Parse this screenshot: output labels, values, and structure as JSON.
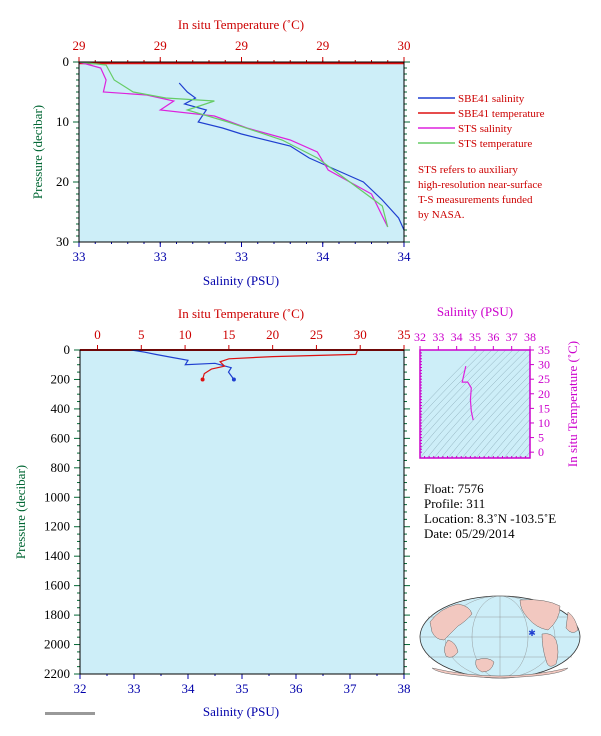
{
  "colors": {
    "bg": "#cdeef8",
    "blue": "#1f3fd0",
    "red": "#dd1111",
    "magenta": "#dd22dd",
    "green": "#66cc66",
    "axis_dark_green": "#006633",
    "axis_red": "#cc0000",
    "axis_blue": "#0000aa",
    "axis_magenta": "#cc00cc"
  },
  "chart_data": [
    {
      "id": "upper",
      "type": "line",
      "title": "",
      "top_axis_label": "In situ Temperature (˚C)",
      "top_tick_labels": [
        "29",
        "29",
        "29",
        "29",
        "30"
      ],
      "xlabel": "Salinity (PSU)",
      "x_tick_labels": [
        "33",
        "33",
        "33",
        "34",
        "34"
      ],
      "ylabel": "Pressure (decibar)",
      "y_ticks": [
        0,
        10,
        20,
        30
      ],
      "ylim": [
        0,
        30
      ],
      "xlim": [
        32.8,
        34.0
      ],
      "temp_lim": [
        28.8,
        30.0
      ],
      "legend": {
        "placement": "right",
        "entries": [
          {
            "label": "SBE41 salinity",
            "color": "#1f3fd0"
          },
          {
            "label": "SBE41 temperature",
            "color": "#dd1111"
          },
          {
            "label": "STS salinity",
            "color": "#dd22dd"
          },
          {
            "label": "STS temperature",
            "color": "#66cc66"
          }
        ]
      },
      "note_lines": [
        "STS refers to auxiliary",
        "high-resolution near-surface",
        "T-S measurements funded",
        "by NASA."
      ],
      "series": [
        {
          "name": "SBE41 salinity",
          "color": "#1f3fd0",
          "axis": "salinity",
          "x": [
            33.17,
            33.2,
            33.23,
            33.19,
            33.27,
            33.24,
            33.33,
            33.4,
            33.58,
            33.65,
            33.75,
            33.85,
            33.92,
            33.98,
            34.0
          ],
          "y": [
            3.5,
            5,
            6,
            7,
            8,
            10,
            11,
            12,
            14,
            16,
            18,
            20,
            23,
            26,
            28
          ]
        },
        {
          "name": "SBE41 temperature",
          "color": "#dd1111",
          "axis": "temperature",
          "x": [
            28.8,
            30.0
          ],
          "y": [
            0.2,
            0.2
          ]
        },
        {
          "name": "STS salinity",
          "color": "#dd22dd",
          "axis": "salinity",
          "x": [
            32.8,
            32.84,
            32.88,
            32.9,
            32.89,
            33.05,
            33.15,
            33.1,
            33.3,
            33.42,
            33.58,
            33.68,
            33.72,
            33.88,
            33.94
          ],
          "y": [
            0,
            0.5,
            1,
            3,
            5,
            5.5,
            6.5,
            8,
            9,
            11,
            13,
            15,
            18,
            22,
            27.5
          ]
        },
        {
          "name": "STS temperature",
          "color": "#66cc66",
          "axis": "salinity",
          "x": [
            32.8,
            32.9,
            32.93,
            33.0,
            33.12,
            33.3,
            33.2,
            33.35,
            33.55,
            33.68,
            33.8,
            33.92,
            33.94
          ],
          "y": [
            0,
            0.5,
            3,
            5,
            6,
            6.5,
            8,
            10,
            13,
            16,
            20,
            24,
            27.5
          ]
        }
      ]
    },
    {
      "id": "lower",
      "type": "line",
      "title": "",
      "top_axis_label": "In situ Temperature (˚C)",
      "top_ticks": [
        0,
        5,
        10,
        15,
        20,
        25,
        30,
        35
      ],
      "xlabel": "Salinity (PSU)",
      "x_ticks": [
        32,
        33,
        34,
        35,
        36,
        37,
        38
      ],
      "ylabel": "Pressure (decibar)",
      "y_ticks": [
        0,
        200,
        400,
        600,
        800,
        1000,
        1200,
        1400,
        1600,
        1800,
        2000,
        2200
      ],
      "ylim": [
        0,
        2200
      ],
      "xlim": [
        32,
        38
      ],
      "temp_lim": [
        -2,
        35
      ],
      "series": [
        {
          "name": "salinity",
          "color": "#1f3fd0",
          "axis": "salinity",
          "x": [
            32.95,
            33.2,
            33.4,
            33.7,
            34.0,
            33.95,
            34.5,
            34.8,
            34.75,
            34.85
          ],
          "y": [
            0,
            15,
            30,
            50,
            70,
            100,
            90,
            120,
            150,
            200
          ]
        },
        {
          "name": "temperature",
          "color": "#dd1111",
          "axis": "temperature",
          "x": [
            29.7,
            29.5,
            20,
            15,
            14,
            14.5,
            13,
            12.2,
            12.0
          ],
          "y": [
            0,
            30,
            45,
            60,
            80,
            110,
            130,
            160,
            200
          ]
        }
      ]
    },
    {
      "id": "ts",
      "type": "line",
      "title": "",
      "top_axis_label": "Salinity (PSU)",
      "top_ticks": [
        32,
        33,
        34,
        35,
        36,
        37,
        38
      ],
      "right_axis_label": "In situ Temperature (˚C)",
      "right_ticks": [
        0,
        5,
        10,
        15,
        20,
        25,
        30,
        35
      ],
      "xlim": [
        32,
        38
      ],
      "ylim": [
        -2,
        35
      ],
      "series": [
        {
          "name": "T-S",
          "color": "#dd22dd",
          "x": [
            34.5,
            34.3,
            34.6,
            34.8,
            34.75,
            34.8,
            34.9
          ],
          "y": [
            29.5,
            24,
            24,
            22,
            18,
            14,
            11
          ]
        }
      ]
    }
  ],
  "float_info": {
    "float": "Float: 7576",
    "profile": "Profile: 311",
    "location": "Location: 8.3˚N -103.5˚E",
    "date": "Date: 05/29/2014"
  },
  "map": {
    "marker_color": "#1f3fd0"
  }
}
